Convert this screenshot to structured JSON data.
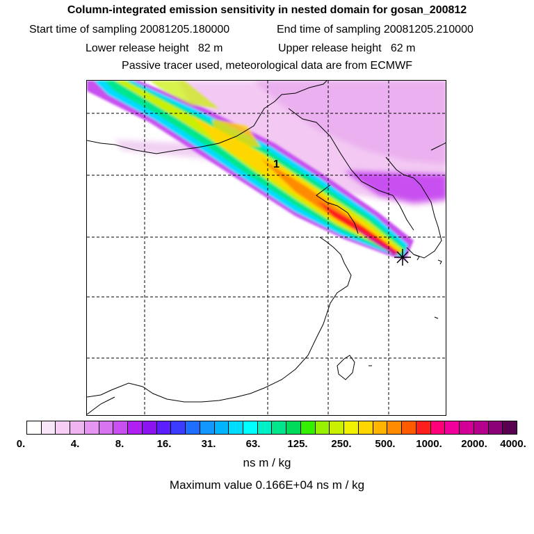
{
  "header": {
    "title": "Column-integrated emission sensitivity in nested domain for gosan_200812",
    "start_label": "Start time of sampling 20081205.180000",
    "end_label": "End time of sampling 20081205.210000",
    "lower_label": "Lower release height   82 m",
    "upper_label": "Upper release height   62 m",
    "tracer_label": "Passive tracer used, meteorological data are from ECMWF"
  },
  "map": {
    "marker_label": "1",
    "receptor_marker": "star-icon"
  },
  "legend": {
    "colors": [
      "#ffffff",
      "#fae6fa",
      "#f5cdf5",
      "#f0b4f0",
      "#e696f0",
      "#d873f0",
      "#c850f0",
      "#b020f0",
      "#8c14f0",
      "#5a1eff",
      "#3c3cff",
      "#1e6eff",
      "#1496ff",
      "#00b4ff",
      "#00dcff",
      "#00ffff",
      "#00f0c8",
      "#00e68c",
      "#00dc5a",
      "#32f000",
      "#96f000",
      "#c8f000",
      "#f0f000",
      "#ffd700",
      "#ffb400",
      "#ff8c00",
      "#ff5a00",
      "#ff1e1e",
      "#ff0078",
      "#f0009b",
      "#d20096",
      "#b4008c",
      "#8c0078",
      "#5a0050"
    ],
    "ticks": [
      "0.",
      "4.",
      "8.",
      "16.",
      "31.",
      "63.",
      "125.",
      "250.",
      "500.",
      "1000.",
      "2000.",
      "4000."
    ],
    "unit": "ns m / kg",
    "max_label": "Maximum value  0.166E+04 ns m / kg"
  }
}
